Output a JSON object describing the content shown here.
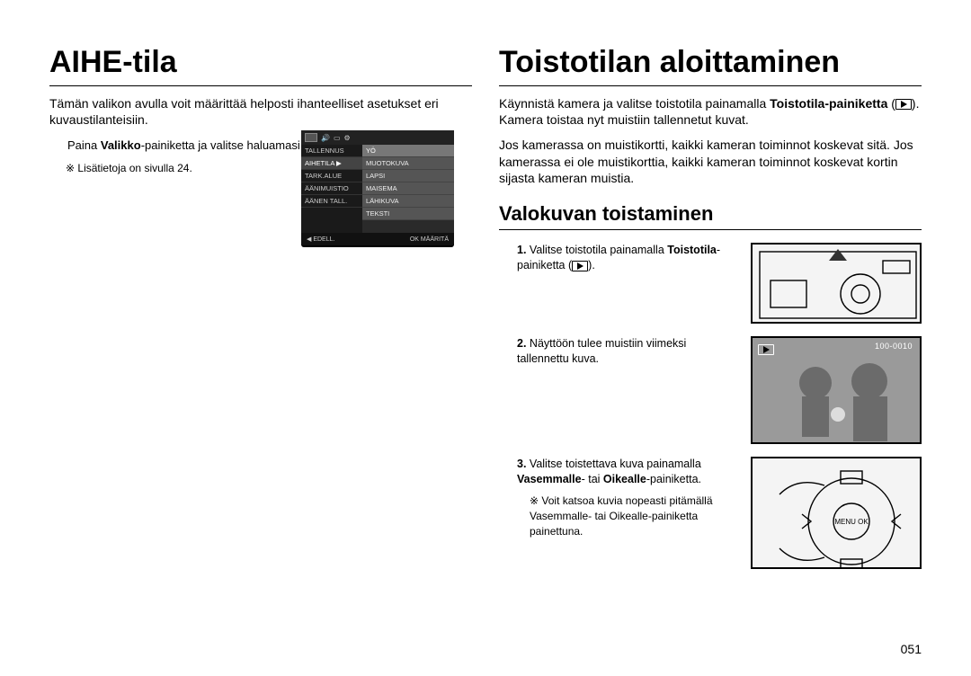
{
  "page_number": "051",
  "left": {
    "title": "AIHE-tila",
    "intro": "Tämän valikon avulla voit määrittää helposti ihanteelliset asetukset eri kuvaustilanteisiin.",
    "step1_prefix": "Paina ",
    "step1_bold": "Valikko",
    "step1_suffix": "-painiketta ja valitse haluamasi alivalikko.",
    "bullet": "Lisätietoja on sivulla 24.",
    "menu": {
      "left_items": [
        "TALLENNUS",
        "AIHETILA",
        "TARK.ALUE",
        "ÄÄNIMUISTIO",
        "ÄÄNEN TALL."
      ],
      "right_items": [
        "YÖ",
        "MUOTOKUVA",
        "LAPSI",
        "MAISEMA",
        "LÄHIKUVA",
        "TEKSTI"
      ],
      "left_highlight_index": 1,
      "right_highlight_index": 0,
      "foot_left": "◀  EDELL.",
      "foot_right": "OK  MÄÄRITÄ"
    }
  },
  "right": {
    "title": "Toistotilan aloittaminen",
    "intro_p1_a": "Käynnistä kamera ja valitse toistotila painamalla ",
    "intro_p1_b": "Toistotila-painiketta",
    "intro_p1_c": " (",
    "intro_p1_d": "). Kamera toistaa nyt muistiin tallennetut kuvat.",
    "intro_p2": "Jos kamerassa on muistikortti, kaikki kameran toiminnot koskevat sitä. Jos kamerassa ei ole muistikorttia, kaikki kameran toiminnot koskevat kortin sijasta kameran muistia.",
    "subtitle": "Valokuvan toistaminen",
    "steps": [
      {
        "num": "1.",
        "text_a": "Valitse toistotila painamalla ",
        "text_b": "Toistotila",
        "text_c": "-painiketta (",
        "text_d": ")."
      },
      {
        "num": "2.",
        "text": "Näyttöön tulee muistiin viimeksi tallennettu kuva."
      },
      {
        "num": "3.",
        "text_a": "Valitse toistettava kuva painamalla ",
        "text_b": "Vasemmalle",
        "text_c": "- tai ",
        "text_d": "Oikealle",
        "text_e": "-painiketta.",
        "sub": "Voit katsoa kuvia nopeasti pitämällä Vasemmalle- tai Oikealle-painiketta painettuna."
      }
    ],
    "fig2_overlay": "100-0010"
  },
  "colors": {
    "text": "#000000",
    "menu_bg": "#000000",
    "menu_row": "#555555",
    "menu_hi": "#777777"
  }
}
